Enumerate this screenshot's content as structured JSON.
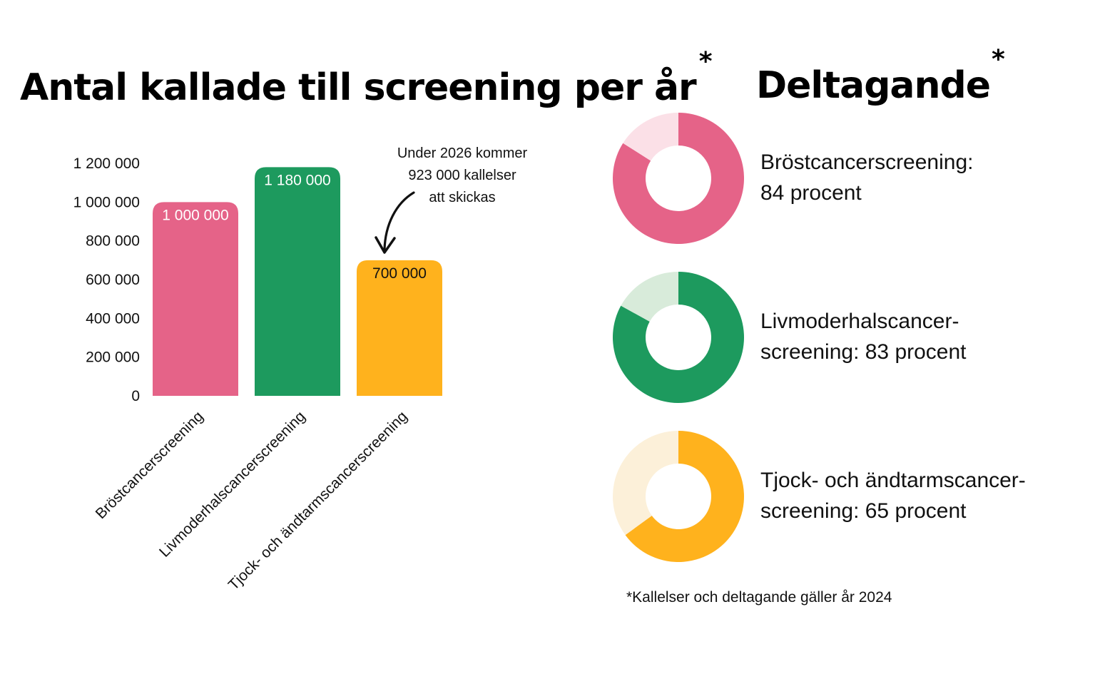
{
  "chart_data": [
    {
      "type": "bar",
      "title": "Antal kallade till screening per år",
      "title_mark": "*",
      "categories": [
        "Bröstcancerscreening",
        "Livmoderhalscancerscreening",
        "Tjock- och ändtarmscancerscreening"
      ],
      "values": [
        1000000,
        1180000,
        700000
      ],
      "value_labels": [
        "1 000 000",
        "1 180 000",
        "700 000"
      ],
      "colors": [
        "#e56388",
        "#1d9a5e",
        "#ffb21d"
      ],
      "value_label_colors": [
        "#ffffff",
        "#ffffff",
        "#111111"
      ],
      "yticks": [
        0,
        200000,
        400000,
        600000,
        800000,
        1000000,
        1200000
      ],
      "ytick_labels": [
        "0",
        "200 000",
        "400 000",
        "600 000",
        "800 000",
        "1 000 000",
        "1 200 000"
      ],
      "ylim": [
        0,
        1200000
      ],
      "annotation": {
        "target_category": "Tjock- och ändtarmscancerscreening",
        "lines": [
          "Under 2026 kommer",
          "923 000 kallelser",
          "att skickas"
        ]
      }
    },
    {
      "type": "pie",
      "title": "Deltagande",
      "title_mark": "*",
      "slices": [
        {
          "label_lines": [
            "Bröstcancerscreening:",
            "84 procent"
          ],
          "value": 84,
          "color": "#e56388",
          "rest_color": "#fbe0e7"
        },
        {
          "label_lines": [
            "Livmoderhalscancer-",
            "screening: 83 procent"
          ],
          "value": 83,
          "color": "#1d9a5e",
          "rest_color": "#d8ebda"
        },
        {
          "label_lines": [
            "Tjock- och ändtarmscancer-",
            "screening: 65 procent"
          ],
          "value": 65,
          "color": "#ffb21d",
          "rest_color": "#fcf0d9"
        }
      ]
    }
  ],
  "footnote": "*Kallelser och deltagande gäller år 2024"
}
